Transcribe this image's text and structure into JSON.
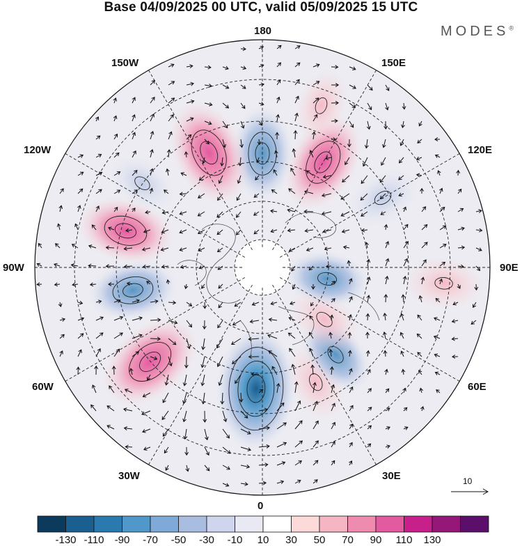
{
  "header": {
    "title": "Base 04/09/2025 00 UTC, valid 05/09/2025 15 UTC",
    "brand": "MODES",
    "brand_mark": "®"
  },
  "map": {
    "projection": "north-polar-stereographic",
    "longitude_labels": {
      "top": "180",
      "bottom": "0",
      "left": "90W",
      "right": "90E",
      "upper_left_1": "150W",
      "upper_left_2": "120W",
      "lower_left_1": "60W",
      "lower_left_2": "30W",
      "upper_right_1": "150E",
      "upper_right_2": "120E",
      "lower_right_1": "60E",
      "lower_right_2": "30E"
    },
    "vector_scale_label": "10",
    "anomaly_centers": [
      {
        "lon_deg": 180,
        "colat_deg": 45,
        "value": -60,
        "sign": "negative"
      },
      {
        "lon_deg": 150,
        "colat_deg": 48,
        "value": 70,
        "sign": "positive"
      },
      {
        "lon_deg": 120,
        "colat_deg": 55,
        "value": -30,
        "sign": "negative"
      },
      {
        "lon_deg": -155,
        "colat_deg": 50,
        "value": 80,
        "sign": "positive"
      },
      {
        "lon_deg": -125,
        "colat_deg": 58,
        "value": -20,
        "sign": "negative"
      },
      {
        "lon_deg": -105,
        "colat_deg": 56,
        "value": 60,
        "sign": "positive"
      },
      {
        "lon_deg": -80,
        "colat_deg": 52,
        "value": -50,
        "sign": "negative"
      },
      {
        "lon_deg": -50,
        "colat_deg": 58,
        "value": 80,
        "sign": "positive"
      },
      {
        "lon_deg": -3,
        "colat_deg": 48,
        "value": -110,
        "sign": "negative"
      },
      {
        "lon_deg": 25,
        "colat_deg": 50,
        "value": 30,
        "sign": "positive"
      },
      {
        "lon_deg": 40,
        "colat_deg": 45,
        "value": -40,
        "sign": "negative"
      },
      {
        "lon_deg": 50,
        "colat_deg": 32,
        "value": 30,
        "sign": "positive"
      },
      {
        "lon_deg": 80,
        "colat_deg": 26,
        "value": -40,
        "sign": "negative"
      },
      {
        "lon_deg": 85,
        "colat_deg": 72,
        "value": 30,
        "sign": "positive"
      },
      {
        "lon_deg": 160,
        "colat_deg": 68,
        "value": 20,
        "sign": "positive"
      }
    ]
  },
  "colorbar": {
    "colors": [
      "#0b3a5c",
      "#1a5f8f",
      "#2a7ab0",
      "#4f98c9",
      "#7fa9d6",
      "#a9bde0",
      "#cfd5ec",
      "#e9e9f4",
      "#ffffff",
      "#fbdad9",
      "#f6b5c3",
      "#f08bb0",
      "#e45aa0",
      "#c7208a",
      "#951878",
      "#5c0e6b"
    ],
    "tick_labels": [
      "-130",
      "-110",
      "-90",
      "-70",
      "-50",
      "-30",
      "-10",
      "10",
      "30",
      "50",
      "70",
      "90",
      "110",
      "130"
    ]
  }
}
